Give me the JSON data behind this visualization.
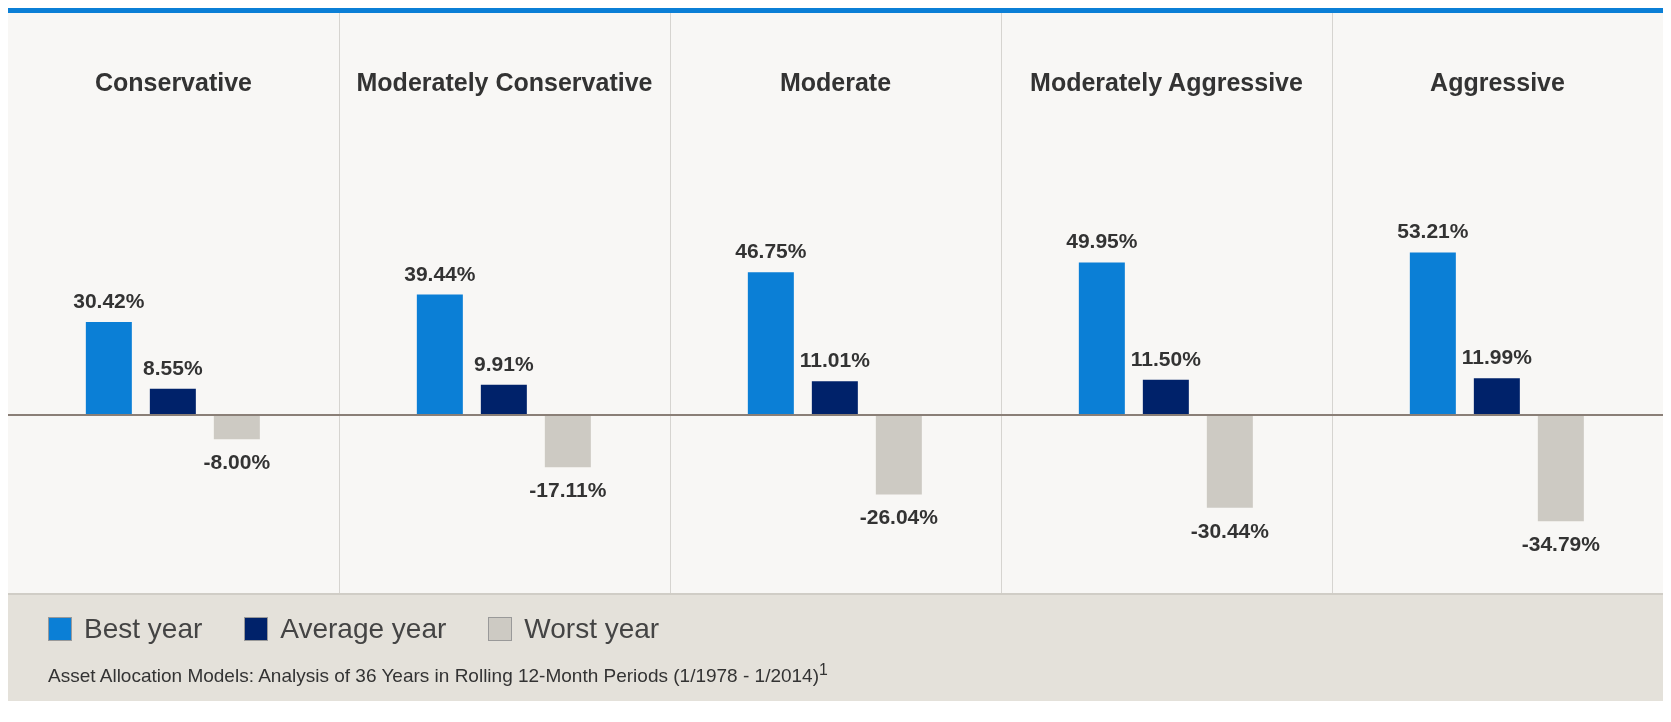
{
  "chart_data": {
    "type": "bar",
    "categories": [
      "Conservative",
      "Moderately Conservative",
      "Moderate",
      "Moderately Aggressive",
      "Aggressive"
    ],
    "series": [
      {
        "name": "Best year",
        "color": "#0b7fd6",
        "values": [
          30.42,
          39.44,
          46.75,
          49.95,
          53.21
        ],
        "value_labels": [
          "30.42%",
          "39.44%",
          "46.75%",
          "49.95%",
          "53.21%"
        ]
      },
      {
        "name": "Average year",
        "color": "#00226a",
        "values": [
          8.55,
          9.91,
          11.01,
          11.5,
          11.99
        ],
        "value_labels": [
          "8.55%",
          "9.91%",
          "11.01%",
          "11.50%",
          "11.99%"
        ]
      },
      {
        "name": "Worst year",
        "color": "#cdcac3",
        "values": [
          -8,
          -17.11,
          -26.04,
          -30.44,
          -34.79
        ],
        "value_labels": [
          "-8.00%",
          "-17.11%",
          "-26.04%",
          "-30.44%",
          "-34.79%"
        ]
      }
    ],
    "legend": "bottom left",
    "annotations": [
      "Asset Allocation Models: Analysis of 36 Years in Rolling 12-Month Periods (1/1978 - 1/2014)$^{1}$"
    ]
  }
}
